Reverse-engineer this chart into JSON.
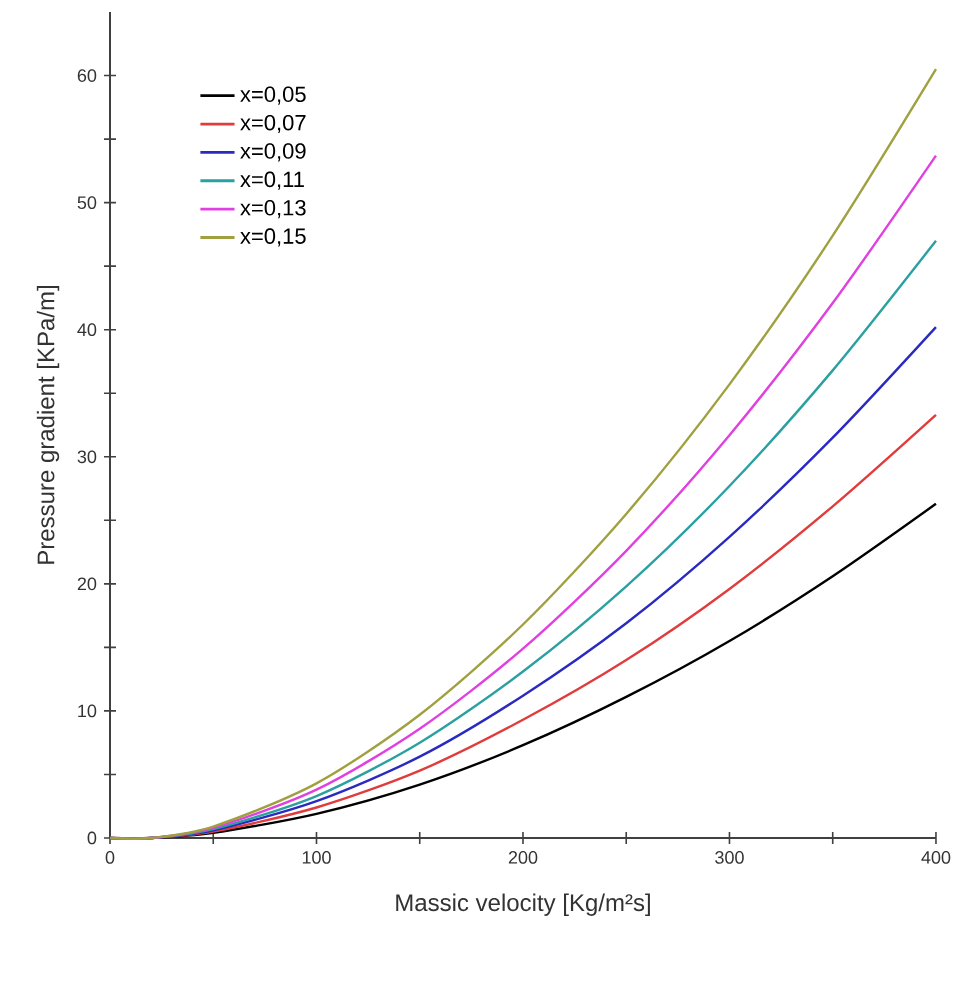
{
  "chart_data": {
    "type": "line",
    "xlabel": "Massic velocity [Kg/m²s]",
    "ylabel": "Pressure gradient [KPa/m]",
    "x": [
      0,
      20,
      50,
      100,
      150,
      200,
      250,
      300,
      350,
      400
    ],
    "xlim": [
      0,
      400
    ],
    "ylim": [
      0,
      65
    ],
    "xticks": [
      0,
      {
        "value": 50,
        "label": null
      },
      100,
      {
        "value": 150,
        "label": null
      },
      200,
      {
        "value": 250,
        "label": null
      },
      300,
      {
        "value": 350,
        "label": null
      },
      400
    ],
    "yticks": [
      0,
      {
        "value": 5,
        "label": null
      },
      10,
      {
        "value": 15,
        "label": null
      },
      20,
      {
        "value": 25,
        "label": null
      },
      30,
      {
        "value": 35,
        "label": null
      },
      40,
      {
        "value": 45,
        "label": null
      },
      50,
      {
        "value": 55,
        "label": null
      },
      60
    ],
    "grid": false,
    "legend": "top left",
    "marker": "none",
    "line_style": "solid",
    "series": [
      {
        "name": "x=0,05",
        "color": "#000000",
        "values": [
          0,
          0,
          0.4,
          1.9,
          4.2,
          7.3,
          11.1,
          15.5,
          20.6,
          26.3
        ]
      },
      {
        "name": "x=0,07",
        "color": "#e03c3c",
        "values": [
          0,
          0,
          0.5,
          2.4,
          5.3,
          9.3,
          14.0,
          19.6,
          26.1,
          33.3
        ]
      },
      {
        "name": "x=0,09",
        "color": "#2a2ac0",
        "values": [
          0,
          0,
          0.6,
          2.9,
          6.4,
          11.2,
          16.9,
          23.7,
          31.5,
          40.2
        ]
      },
      {
        "name": "x=0,11",
        "color": "#2aa0a0",
        "values": [
          0,
          0,
          0.7,
          3.3,
          7.5,
          13.1,
          19.8,
          27.7,
          36.8,
          47.0
        ]
      },
      {
        "name": "x=0,13",
        "color": "#e040e0",
        "values": [
          0,
          0,
          0.8,
          3.8,
          8.6,
          14.9,
          22.6,
          31.7,
          42.1,
          53.7
        ]
      },
      {
        "name": "x=0,15",
        "color": "#a0a040",
        "values": [
          0,
          0,
          0.9,
          4.3,
          9.7,
          16.8,
          25.5,
          35.7,
          47.4,
          60.5
        ]
      }
    ]
  }
}
